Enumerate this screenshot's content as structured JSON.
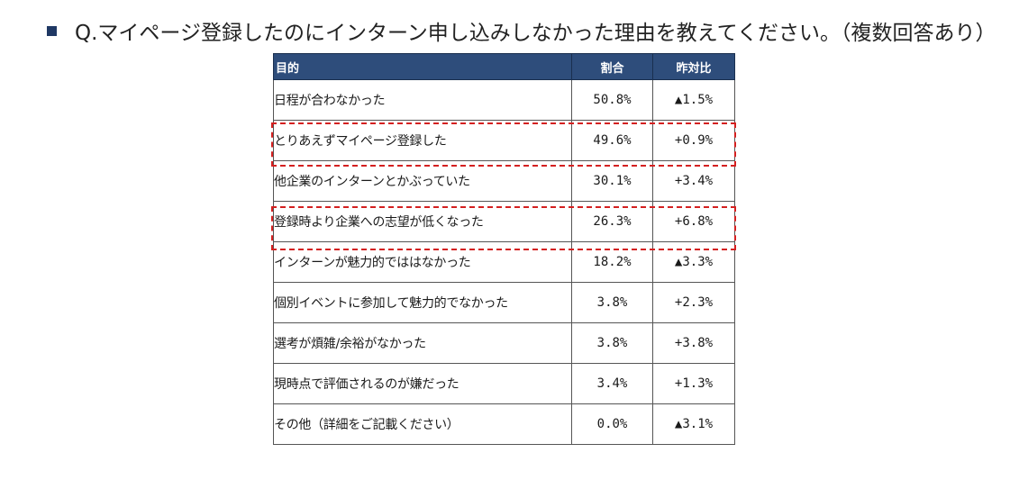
{
  "question": {
    "text": "Q.マイページ登録したのにインターン申し込みしなかった理由を教えてください。（複数回答あり）"
  },
  "colors": {
    "header_bg": "#2e4d7b",
    "bullet": "#1f3864",
    "highlight": "#d42020"
  },
  "chart_data": {
    "type": "table",
    "columns": [
      "目的",
      "割合",
      "昨対比"
    ],
    "rows": [
      {
        "label": "日程が合わなかった",
        "ratio": "50.8%",
        "yoy": "▲1.5%"
      },
      {
        "label": "とりあえずマイページ登録した",
        "ratio": "49.6%",
        "yoy": "+0.9%",
        "highlighted": true
      },
      {
        "label": "他企業のインターンとかぶっていた",
        "ratio": "30.1%",
        "yoy": "+3.4%"
      },
      {
        "label": "登録時より企業への志望が低くなった",
        "ratio": "26.3%",
        "yoy": "+6.8%",
        "highlighted": true
      },
      {
        "label": "インターンが魅力的でははなかった",
        "ratio": "18.2%",
        "yoy": "▲3.3%"
      },
      {
        "label": "個別イベントに参加して魅力的でなかった",
        "ratio": "3.8%",
        "yoy": "+2.3%"
      },
      {
        "label": "選考が煩雑/余裕がなかった",
        "ratio": "3.8%",
        "yoy": "+3.8%"
      },
      {
        "label": "現時点で評価されるのが嫌だった",
        "ratio": "3.4%",
        "yoy": "+1.3%"
      },
      {
        "label": "その他（詳細をご記載ください）",
        "ratio": "0.0%",
        "yoy": "▲3.1%"
      }
    ]
  }
}
